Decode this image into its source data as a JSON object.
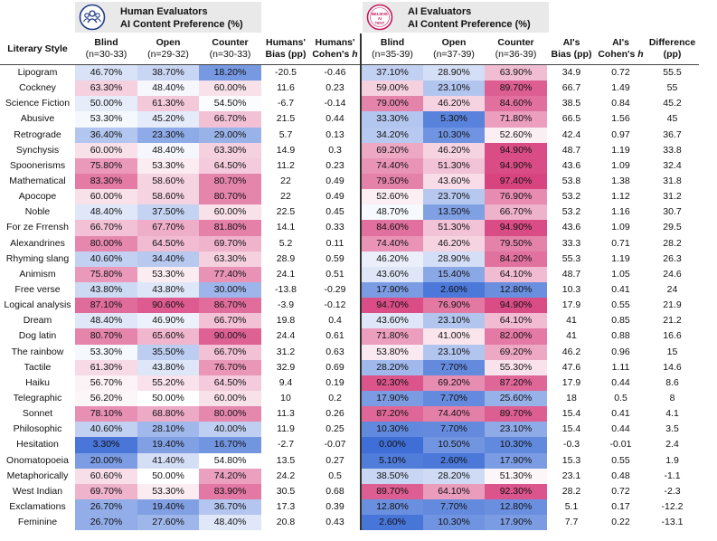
{
  "human_header": {
    "line1": "Human Evaluators",
    "line2": "AI Content Preference (%)"
  },
  "ai_header": {
    "line1": "AI Evaluators",
    "line2": "AI Content Preference (%)",
    "logo_text": "BELIEVE AI TEST"
  },
  "columns": {
    "style": "Literary Style",
    "blind": "Blind",
    "open": "Open",
    "counter": "Counter",
    "humans_bias": "Humans' Bias (pp)",
    "humans_cohen": "Humans' Cohen's h",
    "ai_bias": "AI's Bias (pp)",
    "ai_cohen": "AI's Cohen's h",
    "difference": "Difference (pp)",
    "h_blind_n": "(n=30-33)",
    "h_open_n": "(n=29-32)",
    "h_counter_n": "(n=30-33)",
    "a_blind_n": "(n=35-39)",
    "a_open_n": "(n=37-39)",
    "a_counter_n": "(n=36-39)"
  },
  "colors": {
    "high": "#d63b7a",
    "mid": "#ffffff",
    "low": "#3f6fd6",
    "header_bg": "#e9e9e9"
  },
  "chart_data": {
    "type": "table",
    "title": "AI Content Preference (%) — Human vs AI Evaluators",
    "rows": [
      {
        "style": "Lipogram",
        "h_blind": "46.70%",
        "h_open": "38.70%",
        "h_counter": "18.20%",
        "h_bias": "-20.5",
        "h_h": "-0.46",
        "a_blind": "37.10%",
        "a_open": "28.90%",
        "a_counter": "63.90%",
        "a_bias": "34.9",
        "a_h": "0.72",
        "diff": "55.5"
      },
      {
        "style": "Cockney",
        "h_blind": "63.30%",
        "h_open": "48.40%",
        "h_counter": "60.00%",
        "h_bias": "11.6",
        "h_h": "0.23",
        "a_blind": "59.00%",
        "a_open": "23.10%",
        "a_counter": "89.70%",
        "a_bias": "66.7",
        "a_h": "1.49",
        "diff": "55"
      },
      {
        "style": "Science Fiction",
        "h_blind": "50.00%",
        "h_open": "61.30%",
        "h_counter": "54.50%",
        "h_bias": "-6.7",
        "h_h": "-0.14",
        "a_blind": "79.00%",
        "a_open": "46.20%",
        "a_counter": "84.60%",
        "a_bias": "38.5",
        "a_h": "0.84",
        "diff": "45.2"
      },
      {
        "style": "Abusive",
        "h_blind": "53.30%",
        "h_open": "45.20%",
        "h_counter": "66.70%",
        "h_bias": "21.5",
        "h_h": "0.44",
        "a_blind": "33.30%",
        "a_open": "5.30%",
        "a_counter": "71.80%",
        "a_bias": "66.5",
        "a_h": "1.56",
        "diff": "45"
      },
      {
        "style": "Retrograde",
        "h_blind": "36.40%",
        "h_open": "23.30%",
        "h_counter": "29.00%",
        "h_bias": "5.7",
        "h_h": "0.13",
        "a_blind": "34.20%",
        "a_open": "10.30%",
        "a_counter": "52.60%",
        "a_bias": "42.4",
        "a_h": "0.97",
        "diff": "36.7"
      },
      {
        "style": "Synchysis",
        "h_blind": "60.00%",
        "h_open": "48.40%",
        "h_counter": "63.30%",
        "h_bias": "14.9",
        "h_h": "0.3",
        "a_blind": "69.20%",
        "a_open": "46.20%",
        "a_counter": "94.90%",
        "a_bias": "48.7",
        "a_h": "1.19",
        "diff": "33.8"
      },
      {
        "style": "Spoonerisms",
        "h_blind": "75.80%",
        "h_open": "53.30%",
        "h_counter": "64.50%",
        "h_bias": "11.2",
        "h_h": "0.23",
        "a_blind": "74.40%",
        "a_open": "51.30%",
        "a_counter": "94.90%",
        "a_bias": "43.6",
        "a_h": "1.09",
        "diff": "32.4"
      },
      {
        "style": "Mathematical",
        "h_blind": "83.30%",
        "h_open": "58.60%",
        "h_counter": "80.70%",
        "h_bias": "22",
        "h_h": "0.49",
        "a_blind": "79.50%",
        "a_open": "43.60%",
        "a_counter": "97.40%",
        "a_bias": "53.8",
        "a_h": "1.38",
        "diff": "31.8"
      },
      {
        "style": "Apocope",
        "h_blind": "60.00%",
        "h_open": "58.60%",
        "h_counter": "80.70%",
        "h_bias": "22",
        "h_h": "0.49",
        "a_blind": "52.60%",
        "a_open": "23.70%",
        "a_counter": "76.90%",
        "a_bias": "53.2",
        "a_h": "1.12",
        "diff": "31.2"
      },
      {
        "style": "Noble",
        "h_blind": "48.40%",
        "h_open": "37.50%",
        "h_counter": "60.00%",
        "h_bias": "22.5",
        "h_h": "0.45",
        "a_blind": "48.70%",
        "a_open": "13.50%",
        "a_counter": "66.70%",
        "a_bias": "53.2",
        "a_h": "1.16",
        "diff": "30.7"
      },
      {
        "style": "For ze Frrensh",
        "h_blind": "66.70%",
        "h_open": "67.70%",
        "h_counter": "81.80%",
        "h_bias": "14.1",
        "h_h": "0.33",
        "a_blind": "84.60%",
        "a_open": "51.30%",
        "a_counter": "94.90%",
        "a_bias": "43.6",
        "a_h": "1.09",
        "diff": "29.5"
      },
      {
        "style": "Alexandrines",
        "h_blind": "80.00%",
        "h_open": "64.50%",
        "h_counter": "69.70%",
        "h_bias": "5.2",
        "h_h": "0.11",
        "a_blind": "74.40%",
        "a_open": "46.20%",
        "a_counter": "79.50%",
        "a_bias": "33.3",
        "a_h": "0.71",
        "diff": "28.2"
      },
      {
        "style": "Rhyming slang",
        "h_blind": "40.60%",
        "h_open": "34.40%",
        "h_counter": "63.30%",
        "h_bias": "28.9",
        "h_h": "0.59",
        "a_blind": "46.20%",
        "a_open": "28.90%",
        "a_counter": "84.20%",
        "a_bias": "55.3",
        "a_h": "1.19",
        "diff": "26.3"
      },
      {
        "style": "Animism",
        "h_blind": "75.80%",
        "h_open": "53.30%",
        "h_counter": "77.40%",
        "h_bias": "24.1",
        "h_h": "0.51",
        "a_blind": "43.60%",
        "a_open": "15.40%",
        "a_counter": "64.10%",
        "a_bias": "48.7",
        "a_h": "1.05",
        "diff": "24.6"
      },
      {
        "style": "Free verse",
        "h_blind": "43.80%",
        "h_open": "43.80%",
        "h_counter": "30.00%",
        "h_bias": "-13.8",
        "h_h": "-0.29",
        "a_blind": "17.90%",
        "a_open": "2.60%",
        "a_counter": "12.80%",
        "a_bias": "10.3",
        "a_h": "0.41",
        "diff": "24"
      },
      {
        "style": "Logical analysis",
        "h_blind": "87.10%",
        "h_open": "90.60%",
        "h_counter": "86.70%",
        "h_bias": "-3.9",
        "h_h": "-0.12",
        "a_blind": "94.70%",
        "a_open": "76.90%",
        "a_counter": "94.90%",
        "a_bias": "17.9",
        "a_h": "0.55",
        "diff": "21.9"
      },
      {
        "style": "Dream",
        "h_blind": "48.40%",
        "h_open": "46.90%",
        "h_counter": "66.70%",
        "h_bias": "19.8",
        "h_h": "0.4",
        "a_blind": "43.60%",
        "a_open": "23.10%",
        "a_counter": "64.10%",
        "a_bias": "41",
        "a_h": "0.85",
        "diff": "21.2"
      },
      {
        "style": "Dog latin",
        "h_blind": "80.70%",
        "h_open": "65.60%",
        "h_counter": "90.00%",
        "h_bias": "24.4",
        "h_h": "0.61",
        "a_blind": "71.80%",
        "a_open": "41.00%",
        "a_counter": "82.00%",
        "a_bias": "41",
        "a_h": "0.88",
        "diff": "16.6"
      },
      {
        "style": "The rainbow",
        "h_blind": "53.30%",
        "h_open": "35.50%",
        "h_counter": "66.70%",
        "h_bias": "31.2",
        "h_h": "0.63",
        "a_blind": "53.80%",
        "a_open": "23.10%",
        "a_counter": "69.20%",
        "a_bias": "46.2",
        "a_h": "0.96",
        "diff": "15"
      },
      {
        "style": "Tactile",
        "h_blind": "61.30%",
        "h_open": "43.80%",
        "h_counter": "76.70%",
        "h_bias": "32.9",
        "h_h": "0.69",
        "a_blind": "28.20%",
        "a_open": "7.70%",
        "a_counter": "55.30%",
        "a_bias": "47.6",
        "a_h": "1.11",
        "diff": "14.6"
      },
      {
        "style": "Haiku",
        "h_blind": "56.70%",
        "h_open": "55.20%",
        "h_counter": "64.50%",
        "h_bias": "9.4",
        "h_h": "0.19",
        "a_blind": "92.30%",
        "a_open": "69.20%",
        "a_counter": "87.20%",
        "a_bias": "17.9",
        "a_h": "0.44",
        "diff": "8.6"
      },
      {
        "style": "Telegraphic",
        "h_blind": "56.20%",
        "h_open": "50.00%",
        "h_counter": "60.00%",
        "h_bias": "10",
        "h_h": "0.2",
        "a_blind": "17.90%",
        "a_open": "7.70%",
        "a_counter": "25.60%",
        "a_bias": "18",
        "a_h": "0.5",
        "diff": "8"
      },
      {
        "style": "Sonnet",
        "h_blind": "78.10%",
        "h_open": "68.80%",
        "h_counter": "80.00%",
        "h_bias": "11.3",
        "h_h": "0.26",
        "a_blind": "87.20%",
        "a_open": "74.40%",
        "a_counter": "89.70%",
        "a_bias": "15.4",
        "a_h": "0.41",
        "diff": "4.1"
      },
      {
        "style": "Philosophic",
        "h_blind": "40.60%",
        "h_open": "28.10%",
        "h_counter": "40.00%",
        "h_bias": "11.9",
        "h_h": "0.25",
        "a_blind": "10.30%",
        "a_open": "7.70%",
        "a_counter": "23.10%",
        "a_bias": "15.4",
        "a_h": "0.44",
        "diff": "3.5"
      },
      {
        "style": "Hesitation",
        "h_blind": "3.30%",
        "h_open": "19.40%",
        "h_counter": "16.70%",
        "h_bias": "-2.7",
        "h_h": "-0.07",
        "a_blind": "0.00%",
        "a_open": "10.50%",
        "a_counter": "10.30%",
        "a_bias": "-0.3",
        "a_h": "-0.01",
        "diff": "2.4"
      },
      {
        "style": "Onomatopoeia",
        "h_blind": "20.00%",
        "h_open": "41.40%",
        "h_counter": "54.80%",
        "h_bias": "13.5",
        "h_h": "0.27",
        "a_blind": "5.10%",
        "a_open": "2.60%",
        "a_counter": "17.90%",
        "a_bias": "15.3",
        "a_h": "0.55",
        "diff": "1.9"
      },
      {
        "style": "Metaphorically",
        "h_blind": "60.60%",
        "h_open": "50.00%",
        "h_counter": "74.20%",
        "h_bias": "24.2",
        "h_h": "0.5",
        "a_blind": "38.50%",
        "a_open": "28.20%",
        "a_counter": "51.30%",
        "a_bias": "23.1",
        "a_h": "0.48",
        "diff": "-1.1"
      },
      {
        "style": "West Indian",
        "h_blind": "69.70%",
        "h_open": "53.30%",
        "h_counter": "83.90%",
        "h_bias": "30.5",
        "h_h": "0.68",
        "a_blind": "89.70%",
        "a_open": "64.10%",
        "a_counter": "92.30%",
        "a_bias": "28.2",
        "a_h": "0.72",
        "diff": "-2.3"
      },
      {
        "style": "Exclamations",
        "h_blind": "26.70%",
        "h_open": "19.40%",
        "h_counter": "36.70%",
        "h_bias": "17.3",
        "h_h": "0.39",
        "a_blind": "12.80%",
        "a_open": "7.70%",
        "a_counter": "12.80%",
        "a_bias": "5.1",
        "a_h": "0.17",
        "diff": "-12.2"
      },
      {
        "style": "Feminine",
        "h_blind": "26.70%",
        "h_open": "27.60%",
        "h_counter": "48.40%",
        "h_bias": "20.8",
        "h_h": "0.43",
        "a_blind": "2.60%",
        "a_open": "10.30%",
        "a_counter": "17.90%",
        "a_bias": "7.7",
        "a_h": "0.22",
        "diff": "-13.1"
      }
    ]
  }
}
